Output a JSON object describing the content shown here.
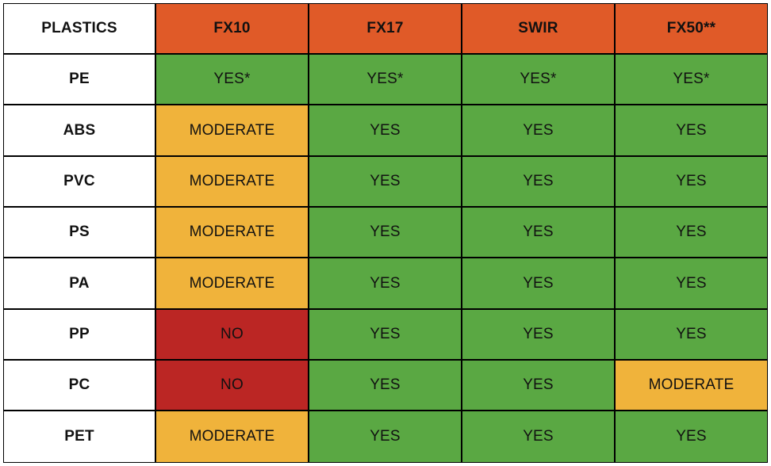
{
  "table": {
    "corner_label": "PLASTICS",
    "columns": [
      "FX10",
      "FX17",
      "SWIR",
      "FX50**"
    ],
    "rows": [
      {
        "label": "PE",
        "cells": [
          "YES*",
          "YES*",
          "YES*",
          "YES*"
        ]
      },
      {
        "label": "ABS",
        "cells": [
          "MODERATE",
          "YES",
          "YES",
          "YES"
        ]
      },
      {
        "label": "PVC",
        "cells": [
          "MODERATE",
          "YES",
          "YES",
          "YES"
        ]
      },
      {
        "label": "PS",
        "cells": [
          "MODERATE",
          "YES",
          "YES",
          "YES"
        ]
      },
      {
        "label": "PA",
        "cells": [
          "MODERATE",
          "YES",
          "YES",
          "YES"
        ]
      },
      {
        "label": "PP",
        "cells": [
          "NO",
          "YES",
          "YES",
          "YES"
        ]
      },
      {
        "label": "PC",
        "cells": [
          "NO",
          "YES",
          "YES",
          "MODERATE"
        ]
      },
      {
        "label": "PET",
        "cells": [
          "MODERATE",
          "YES",
          "YES",
          "YES"
        ]
      }
    ]
  },
  "colors": {
    "header": "#e05a28",
    "yes": "#5aa843",
    "moderate": "#f0b33b",
    "no": "#bb2624"
  }
}
